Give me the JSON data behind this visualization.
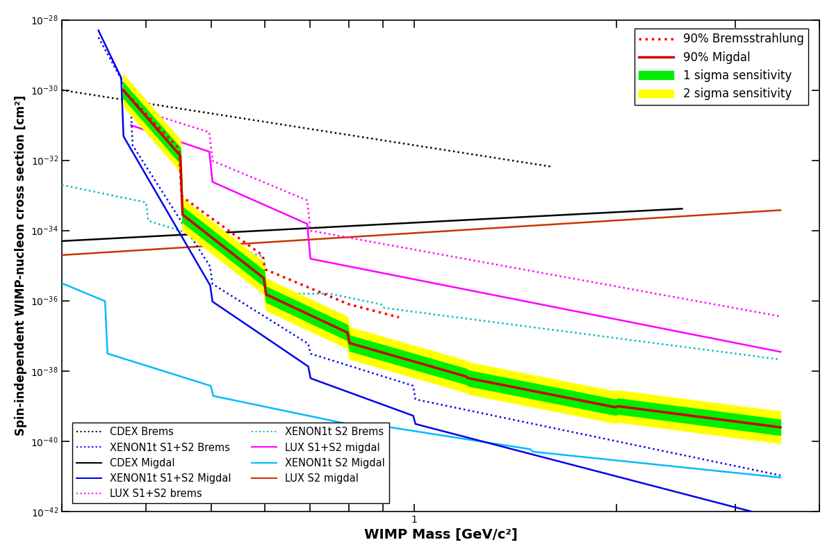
{
  "title": "",
  "xlabel": "WIMP Mass [GeV/c²]",
  "ylabel": "Spin-independent WIMP-nucleon cross section [cm²]",
  "background_color": "#ffffff",
  "legend1_entries": [
    {
      "label": "90% Bremsstrahlung",
      "color": "#ff0000",
      "linestyle": "dotted",
      "lw": 2.5
    },
    {
      "label": "90% Migdal",
      "color": "#cc0000",
      "linestyle": "solid",
      "lw": 2.5
    },
    {
      "label": "1 sigma sensitivity",
      "color": "#00ee00",
      "type": "patch"
    },
    {
      "label": "2 sigma sensitivity",
      "color": "#ffff00",
      "type": "patch"
    }
  ],
  "legend2_entries": [
    {
      "label": "CDEX Brems",
      "color": "#000000",
      "linestyle": "dotted",
      "lw": 1.5
    },
    {
      "label": "CDEX Migdal",
      "color": "#000000",
      "linestyle": "solid",
      "lw": 1.5
    },
    {
      "label": "LUX S1+S2 brems",
      "color": "#ff00ff",
      "linestyle": "dotted",
      "lw": 1.5
    },
    {
      "label": "LUX S1+S2 migdal",
      "color": "#ff00ff",
      "linestyle": "solid",
      "lw": 1.5
    },
    {
      "label": "LUX S2 migdal",
      "color": "#cc3300",
      "linestyle": "solid",
      "lw": 1.5
    },
    {
      "label": "XENON1t S1+S2 Brems",
      "color": "#0000ee",
      "linestyle": "dotted",
      "lw": 1.5
    },
    {
      "label": "XENON1t S1+S2 Migdal",
      "color": "#0000ee",
      "linestyle": "solid",
      "lw": 1.5
    },
    {
      "label": "XENON1t S2 Brems",
      "color": "#00bbbb",
      "linestyle": "dotted",
      "lw": 1.5
    },
    {
      "label": "XENON1t S2 Migdal",
      "color": "#00bbff",
      "linestyle": "solid",
      "lw": 1.5
    }
  ]
}
